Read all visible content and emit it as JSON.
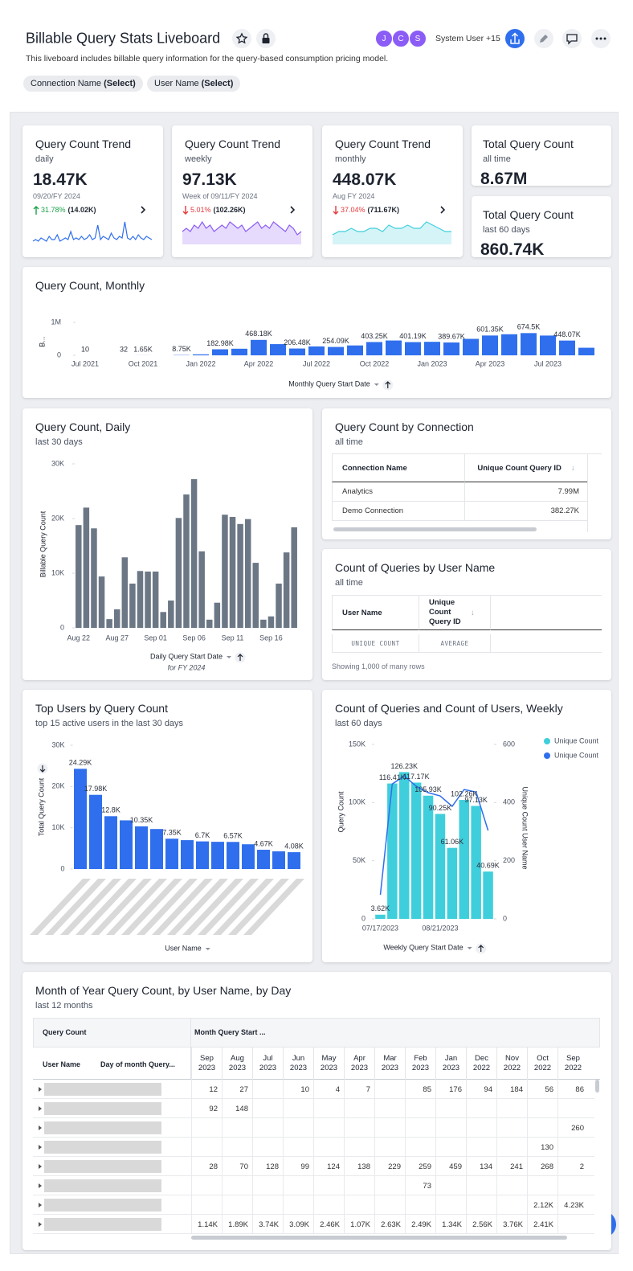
{
  "header": {
    "title": "Billable Query Stats Liveboard",
    "description": "This liveboard includes billable query information for the query-based consumption pricing model.",
    "filters": [
      {
        "name": "Connection Name",
        "value": "(Select)"
      },
      {
        "name": "User Name",
        "value": "(Select)"
      }
    ],
    "avatars": [
      "J",
      "C",
      "S"
    ],
    "user": "System User +15"
  },
  "kpis": [
    {
      "title": "Query Count Trend",
      "subtitle": "daily",
      "value": "18.47K",
      "date": "09/20/FY 2024",
      "change": "31.78%",
      "previous": "(14.02K)",
      "direction": "up",
      "color": "#2f6fed",
      "area": false,
      "sparkline": [
        2,
        3,
        2,
        4,
        3,
        2,
        5,
        3,
        3,
        6,
        2,
        3,
        4,
        3,
        8,
        3,
        4,
        3,
        5,
        3,
        4,
        6,
        3,
        4,
        12,
        3,
        5,
        4,
        3,
        7,
        4,
        3,
        5,
        4,
        14,
        4,
        3,
        5,
        3,
        6,
        4,
        3,
        5,
        4,
        3
      ]
    },
    {
      "title": "Query Count Trend",
      "subtitle": "weekly",
      "value": "97.13K",
      "date": "Week of 09/11/FY 2024",
      "change": "5.01%",
      "previous": "(102.26K)",
      "direction": "down",
      "color": "#8b5cf6",
      "area": true,
      "sparkline": [
        4,
        5,
        4,
        6,
        5,
        7,
        5,
        6,
        4,
        5,
        6,
        5,
        7,
        6,
        5,
        6,
        4,
        5,
        6,
        7,
        5,
        6,
        5,
        7,
        6,
        5,
        4,
        6,
        5,
        3,
        4
      ]
    },
    {
      "title": "Query Count Trend",
      "subtitle": "monthly",
      "value": "448.07K",
      "date": "Aug FY 2024",
      "change": "37.04%",
      "previous": "(711.67K)",
      "direction": "down",
      "color": "#3fcfdc",
      "area": true,
      "sparkline": [
        3,
        4,
        4,
        5,
        4,
        4,
        5,
        5,
        4,
        6,
        5,
        5,
        6,
        5,
        5,
        7,
        6,
        5,
        4,
        4
      ]
    }
  ],
  "totals": [
    {
      "title": "Total Query Count",
      "subtitle": "all time",
      "value": "8.67M"
    },
    {
      "title": "Total Query Count",
      "subtitle": "last 60 days",
      "value": "860.74K"
    }
  ],
  "chart_data": [
    {
      "type": "bar",
      "title": "Query Count, Monthly",
      "x_label": "Monthly Query Start Date",
      "y_label": "B...",
      "color": "#2f6fed",
      "grid": false,
      "categories": [
        "Jul 2021",
        null,
        null,
        "Oct 2021",
        null,
        null,
        "Jan 2022",
        null,
        null,
        "Apr 2022",
        null,
        null,
        "Jul 2022",
        null,
        null,
        "Oct 2022",
        null,
        null,
        "Jan 2023",
        null,
        null,
        "Apr 2023",
        null,
        null,
        "Jul 2023",
        null,
        null
      ],
      "values": [
        10,
        null,
        32,
        1650,
        null,
        8750,
        30000,
        182980,
        200000,
        468180,
        340000,
        206480,
        270000,
        254090,
        300000,
        403250,
        450000,
        401190,
        410000,
        389670,
        500000,
        601350,
        640000,
        674500,
        600000,
        448070,
        230000
      ],
      "value_labels": [
        "10",
        null,
        "32",
        "1.65K",
        null,
        "8.75K",
        null,
        "182.98K",
        null,
        "468.18K",
        null,
        "206.48K",
        null,
        "254.09K",
        null,
        "403.25K",
        null,
        "401.19K",
        null,
        "389.67K",
        null,
        "601.35K",
        null,
        "674.5K",
        null,
        "448.07K",
        null
      ],
      "ylim": [
        0,
        1000000
      ],
      "yticks": [
        0,
        {
          "value": 1000000,
          "label": "1M"
        }
      ]
    },
    {
      "type": "bar",
      "title": "Query Count, Daily",
      "subtitle": "last 30 days",
      "x_label": "Daily Query Start Date",
      "x_note": "for FY 2024",
      "y_label": "Billable Query Count",
      "color": "#6c7786",
      "grid": false,
      "categories": [
        "Aug 22",
        null,
        null,
        null,
        null,
        "Aug 27",
        null,
        null,
        null,
        null,
        "Sep 01",
        null,
        null,
        null,
        null,
        "Sep 06",
        null,
        null,
        null,
        null,
        "Sep 11",
        null,
        null,
        null,
        null,
        "Sep 16",
        null,
        null,
        null
      ],
      "values": [
        18800,
        22000,
        18200,
        9400,
        1600,
        3400,
        12900,
        8100,
        10400,
        10300,
        10300,
        2900,
        5000,
        20100,
        24400,
        27200,
        14000,
        1500,
        4600,
        20700,
        20300,
        19000,
        19900,
        11900,
        1500,
        2100,
        8100,
        13800,
        18400
      ],
      "ylim": [
        0,
        30000
      ],
      "yticks": [
        0,
        {
          "value": 10000,
          "label": "10K"
        },
        {
          "value": 20000,
          "label": "20K"
        },
        {
          "value": 30000,
          "label": "30K"
        }
      ]
    },
    {
      "type": "bar",
      "title": "Top Users by Query Count",
      "subtitle": "top 15 active users in the last 30 days",
      "x_label": "User Name",
      "y_label": "Total Query Count",
      "color": "#2f6fed",
      "grid": false,
      "categories": [
        null,
        null,
        null,
        null,
        null,
        null,
        null,
        null,
        null,
        null,
        null,
        null,
        null,
        null,
        null
      ],
      "values": [
        24290,
        17980,
        12800,
        11800,
        10350,
        9700,
        7350,
        7000,
        6700,
        6600,
        6570,
        6000,
        4670,
        4300,
        4080
      ],
      "value_labels": [
        "24.29K",
        "17.98K",
        "12.8K",
        null,
        "10.35K",
        null,
        "7.35K",
        null,
        "6.7K",
        null,
        "6.57K",
        null,
        "4.67K",
        null,
        "4.08K"
      ],
      "ylim": [
        0,
        30000
      ],
      "yticks": [
        0,
        {
          "value": 10000,
          "label": "10K"
        },
        {
          "value": 20000,
          "label": "20K"
        },
        {
          "value": 30000,
          "label": "30K"
        }
      ]
    },
    {
      "type": "combo",
      "title": "Count of Queries and Count of Users, Weekly",
      "subtitle": "last 60 days",
      "x_label": "Weekly Query Start Date",
      "y_label": "Query Count",
      "y2_label": "Unique Count User Name",
      "legend": "right",
      "grid": false,
      "categories": [
        "07/17/2023",
        null,
        null,
        null,
        null,
        "08/21/2023",
        null,
        null,
        null,
        null
      ],
      "series": [
        {
          "name": "Unique Count",
          "kind": "bar",
          "color": "#3fcfdc",
          "values": [
            3620,
            116410,
            126230,
            117170,
            105930,
            90250,
            61060,
            102260,
            97130,
            40690
          ],
          "value_labels": [
            "3.62K",
            "116.41K",
            "126.23K",
            "117.17K",
            "105.93K",
            "90.25K",
            "61.06K",
            "102.26K",
            "97.13K",
            "40.69K"
          ]
        },
        {
          "name": "Unique Count",
          "kind": "line",
          "axis": "y2",
          "color": "#2f6fed",
          "values": [
            83,
            464,
            492,
            456,
            434,
            423,
            387,
            445,
            436,
            304
          ]
        }
      ],
      "ylim": [
        0,
        150000
      ],
      "yticks": [
        0,
        {
          "value": 50000,
          "label": "50K"
        },
        {
          "value": 100000,
          "label": "100K"
        },
        {
          "value": 150000,
          "label": "150K"
        }
      ],
      "y2lim": [
        0,
        600
      ],
      "y2ticks": [
        0,
        200,
        400,
        600
      ]
    }
  ],
  "connection_table": {
    "title": "Query Count by Connection",
    "subtitle": "all time",
    "columns": [
      "Connection Name",
      "Unique Count Query ID"
    ],
    "rows": [
      [
        "Analytics",
        "7.99M"
      ],
      [
        "Demo Connection",
        "382.27K"
      ]
    ]
  },
  "user_table": {
    "title": "Count of Queries by User Name",
    "subtitle": "all time",
    "columns": [
      "User Name",
      "Unique Count Query ID"
    ],
    "aggregations": [
      "UNIQUE COUNT",
      "AVERAGE"
    ],
    "footer": "Showing 1,000 of many rows"
  },
  "pivot": {
    "title": "Month of Year Query Count, by User Name, by Day",
    "subtitle": "last 12 months",
    "measure": "Query Count",
    "column_field": "Month Query Start ...",
    "row_fields": [
      "User Name",
      "Day of month Query..."
    ],
    "columns": [
      "Sep 2023",
      "Aug 2023",
      "Jul 2023",
      "Jun 2023",
      "May 2023",
      "Apr 2023",
      "Mar 2023",
      "Feb 2023",
      "Jan 2023",
      "Dec 2022",
      "Nov 2022",
      "Oct 2022",
      "Sep 2022"
    ],
    "rows": [
      [
        "12",
        "27",
        null,
        "10",
        "4",
        "7",
        null,
        "85",
        "176",
        "94",
        "184",
        "56",
        "86"
      ],
      [
        "92",
        "148",
        null,
        null,
        null,
        null,
        null,
        null,
        null,
        null,
        null,
        null,
        null
      ],
      [
        null,
        null,
        null,
        null,
        null,
        null,
        null,
        null,
        null,
        null,
        null,
        null,
        "260"
      ],
      [
        null,
        null,
        null,
        null,
        null,
        null,
        null,
        null,
        null,
        null,
        null,
        "130",
        null
      ],
      [
        "28",
        "70",
        "128",
        "99",
        "124",
        "138",
        "229",
        "259",
        "459",
        "134",
        "241",
        "268",
        "2"
      ],
      [
        null,
        null,
        null,
        null,
        null,
        null,
        null,
        "73",
        null,
        null,
        null,
        null,
        null
      ],
      [
        null,
        null,
        null,
        null,
        null,
        null,
        null,
        null,
        null,
        null,
        null,
        "2.12K",
        "4.23K"
      ],
      [
        "1.14K",
        "1.89K",
        "3.74K",
        "3.09K",
        "2.46K",
        "1.07K",
        "2.63K",
        "2.49K",
        "1.34K",
        "2.56K",
        "3.76K",
        "2.41K",
        null
      ]
    ]
  }
}
